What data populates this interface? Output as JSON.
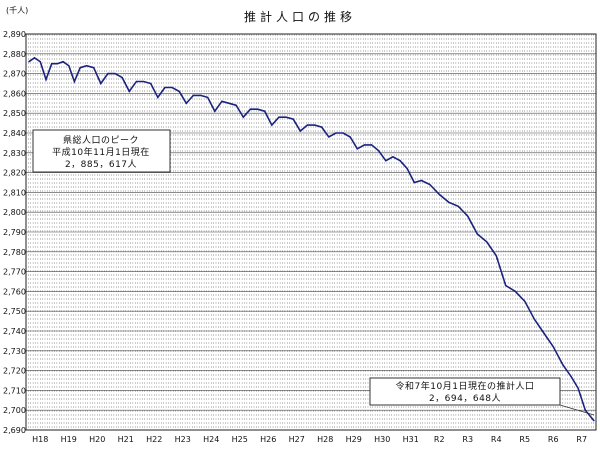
{
  "chart_data": {
    "type": "line",
    "title": "推計人口の推移",
    "unit": "(千人)",
    "ylim": [
      2690,
      2890
    ],
    "y_ticks": [
      2890,
      2880,
      2870,
      2860,
      2850,
      2840,
      2830,
      2820,
      2810,
      2800,
      2790,
      2780,
      2770,
      2760,
      2750,
      2740,
      2730,
      2720,
      2710,
      2700,
      2690
    ],
    "y_tick_labels": [
      "2,890",
      "2,880",
      "2,870",
      "2,860",
      "2,850",
      "2,840",
      "2,830",
      "2,820",
      "2,810",
      "2,800",
      "2,790",
      "2,780",
      "2,770",
      "2,760",
      "2,750",
      "2,740",
      "2,730",
      "2,720",
      "2,710",
      "2,700",
      "2,690"
    ],
    "x_labels": [
      "H18",
      "H19",
      "H20",
      "H21",
      "H22",
      "H23",
      "H24",
      "H25",
      "H26",
      "H27",
      "H28",
      "H29",
      "H30",
      "H31",
      "R2",
      "R3",
      "R4",
      "R5",
      "R6",
      "R7"
    ],
    "grid": "dashed vertical monthly and solid horizontal",
    "line_color": "#1a237e",
    "points": [
      [
        "H18",
        2876
      ],
      [
        "H18",
        2878
      ],
      [
        "H18",
        2876
      ],
      [
        "H18",
        2867
      ],
      [
        "H18",
        2875
      ],
      [
        "H19",
        2875
      ],
      [
        "H19",
        2876
      ],
      [
        "H19",
        2874
      ],
      [
        "H19",
        2866
      ],
      [
        "H19",
        2873
      ],
      [
        "H20",
        2874
      ],
      [
        "H20",
        2873
      ],
      [
        "H20",
        2865
      ],
      [
        "H20",
        2870
      ],
      [
        "H21",
        2870
      ],
      [
        "H21",
        2868
      ],
      [
        "H21",
        2861
      ],
      [
        "H21",
        2866
      ],
      [
        "H22",
        2866
      ],
      [
        "H22",
        2865
      ],
      [
        "H22",
        2858
      ],
      [
        "H22",
        2863
      ],
      [
        "H23",
        2863
      ],
      [
        "H23",
        2861
      ],
      [
        "H23",
        2855
      ],
      [
        "H23",
        2859
      ],
      [
        "H24",
        2859
      ],
      [
        "H24",
        2858
      ],
      [
        "H24",
        2851
      ],
      [
        "H24",
        2856
      ],
      [
        "H25",
        2855
      ],
      [
        "H25",
        2854
      ],
      [
        "H25",
        2848
      ],
      [
        "H25",
        2852
      ],
      [
        "H26",
        2852
      ],
      [
        "H26",
        2851
      ],
      [
        "H26",
        2844
      ],
      [
        "H26",
        2848
      ],
      [
        "H27",
        2848
      ],
      [
        "H27",
        2847
      ],
      [
        "H27",
        2841
      ],
      [
        "H27",
        2844
      ],
      [
        "H28",
        2844
      ],
      [
        "H28",
        2843
      ],
      [
        "H28",
        2838
      ],
      [
        "H28",
        2840
      ],
      [
        "H29",
        2840
      ],
      [
        "H29",
        2838
      ],
      [
        "H29",
        2832
      ],
      [
        "H29",
        2834
      ],
      [
        "H30",
        2834
      ],
      [
        "H30",
        2831
      ],
      [
        "H30",
        2826
      ],
      [
        "H30",
        2828
      ],
      [
        "H31",
        2826
      ],
      [
        "H31",
        2822
      ],
      [
        "H31",
        2815
      ],
      [
        "H31",
        2816
      ],
      [
        "R2",
        2814
      ],
      [
        "R2",
        2809
      ],
      [
        "R2",
        2805
      ],
      [
        "R3",
        2803
      ],
      [
        "R3",
        2798
      ],
      [
        "R3",
        2789
      ],
      [
        "R4",
        2785
      ],
      [
        "R4",
        2778
      ],
      [
        "R4",
        2763
      ],
      [
        "R5",
        2760
      ],
      [
        "R5",
        2755
      ],
      [
        "R5",
        2746
      ],
      [
        "R6",
        2739
      ],
      [
        "R6",
        2732
      ],
      [
        "R6",
        2723
      ],
      [
        "R7",
        2717
      ],
      [
        "R7",
        2711
      ],
      [
        "R7",
        2700
      ],
      [
        "R7",
        2694.648
      ]
    ],
    "annotations": [
      {
        "line1": "県総人口のピーク",
        "line2": "平成10年11月1日現在",
        "line3": "2，885，617人"
      },
      {
        "line1": "令和7年10月1日現在の推計人口",
        "line2": "2，694，648人"
      }
    ]
  }
}
